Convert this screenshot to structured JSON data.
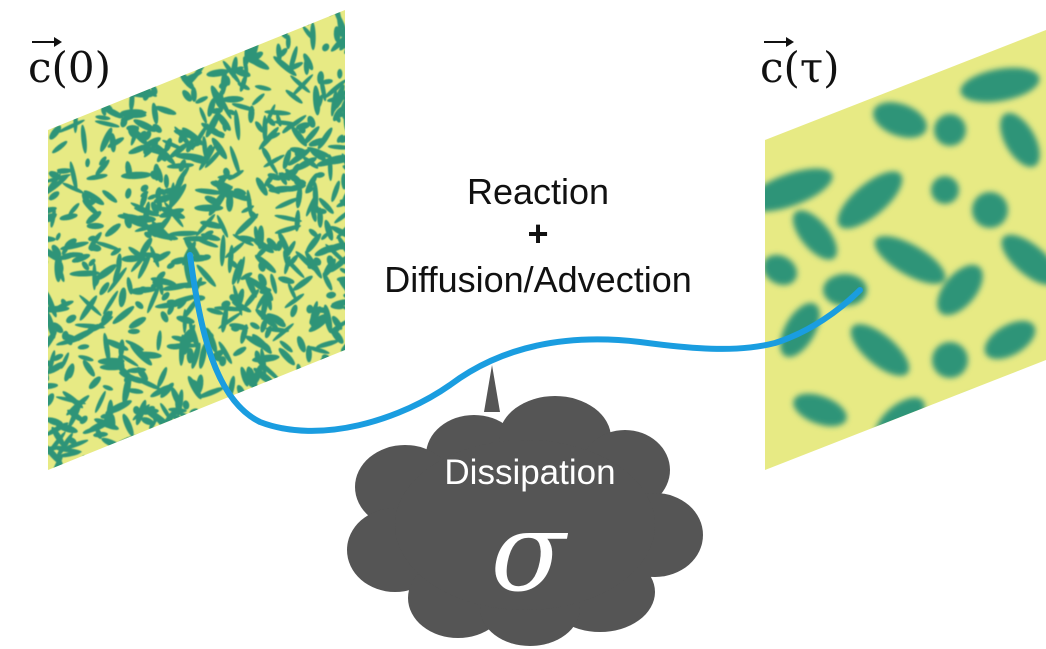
{
  "labels": {
    "initial_state": "c(0)",
    "final_state": "c(τ)",
    "reaction": "Reaction",
    "plus": "+",
    "transport": "Diffusion/Advection",
    "dissipation": "Dissipation",
    "sigma": "σ"
  },
  "colors": {
    "pattern_background": "#e7ea84",
    "pattern_spots": "#2f9478",
    "trajectory": "#1a9de0",
    "cloud": "#555555",
    "cloud_text": "#ffffff",
    "text": "#111111"
  }
}
